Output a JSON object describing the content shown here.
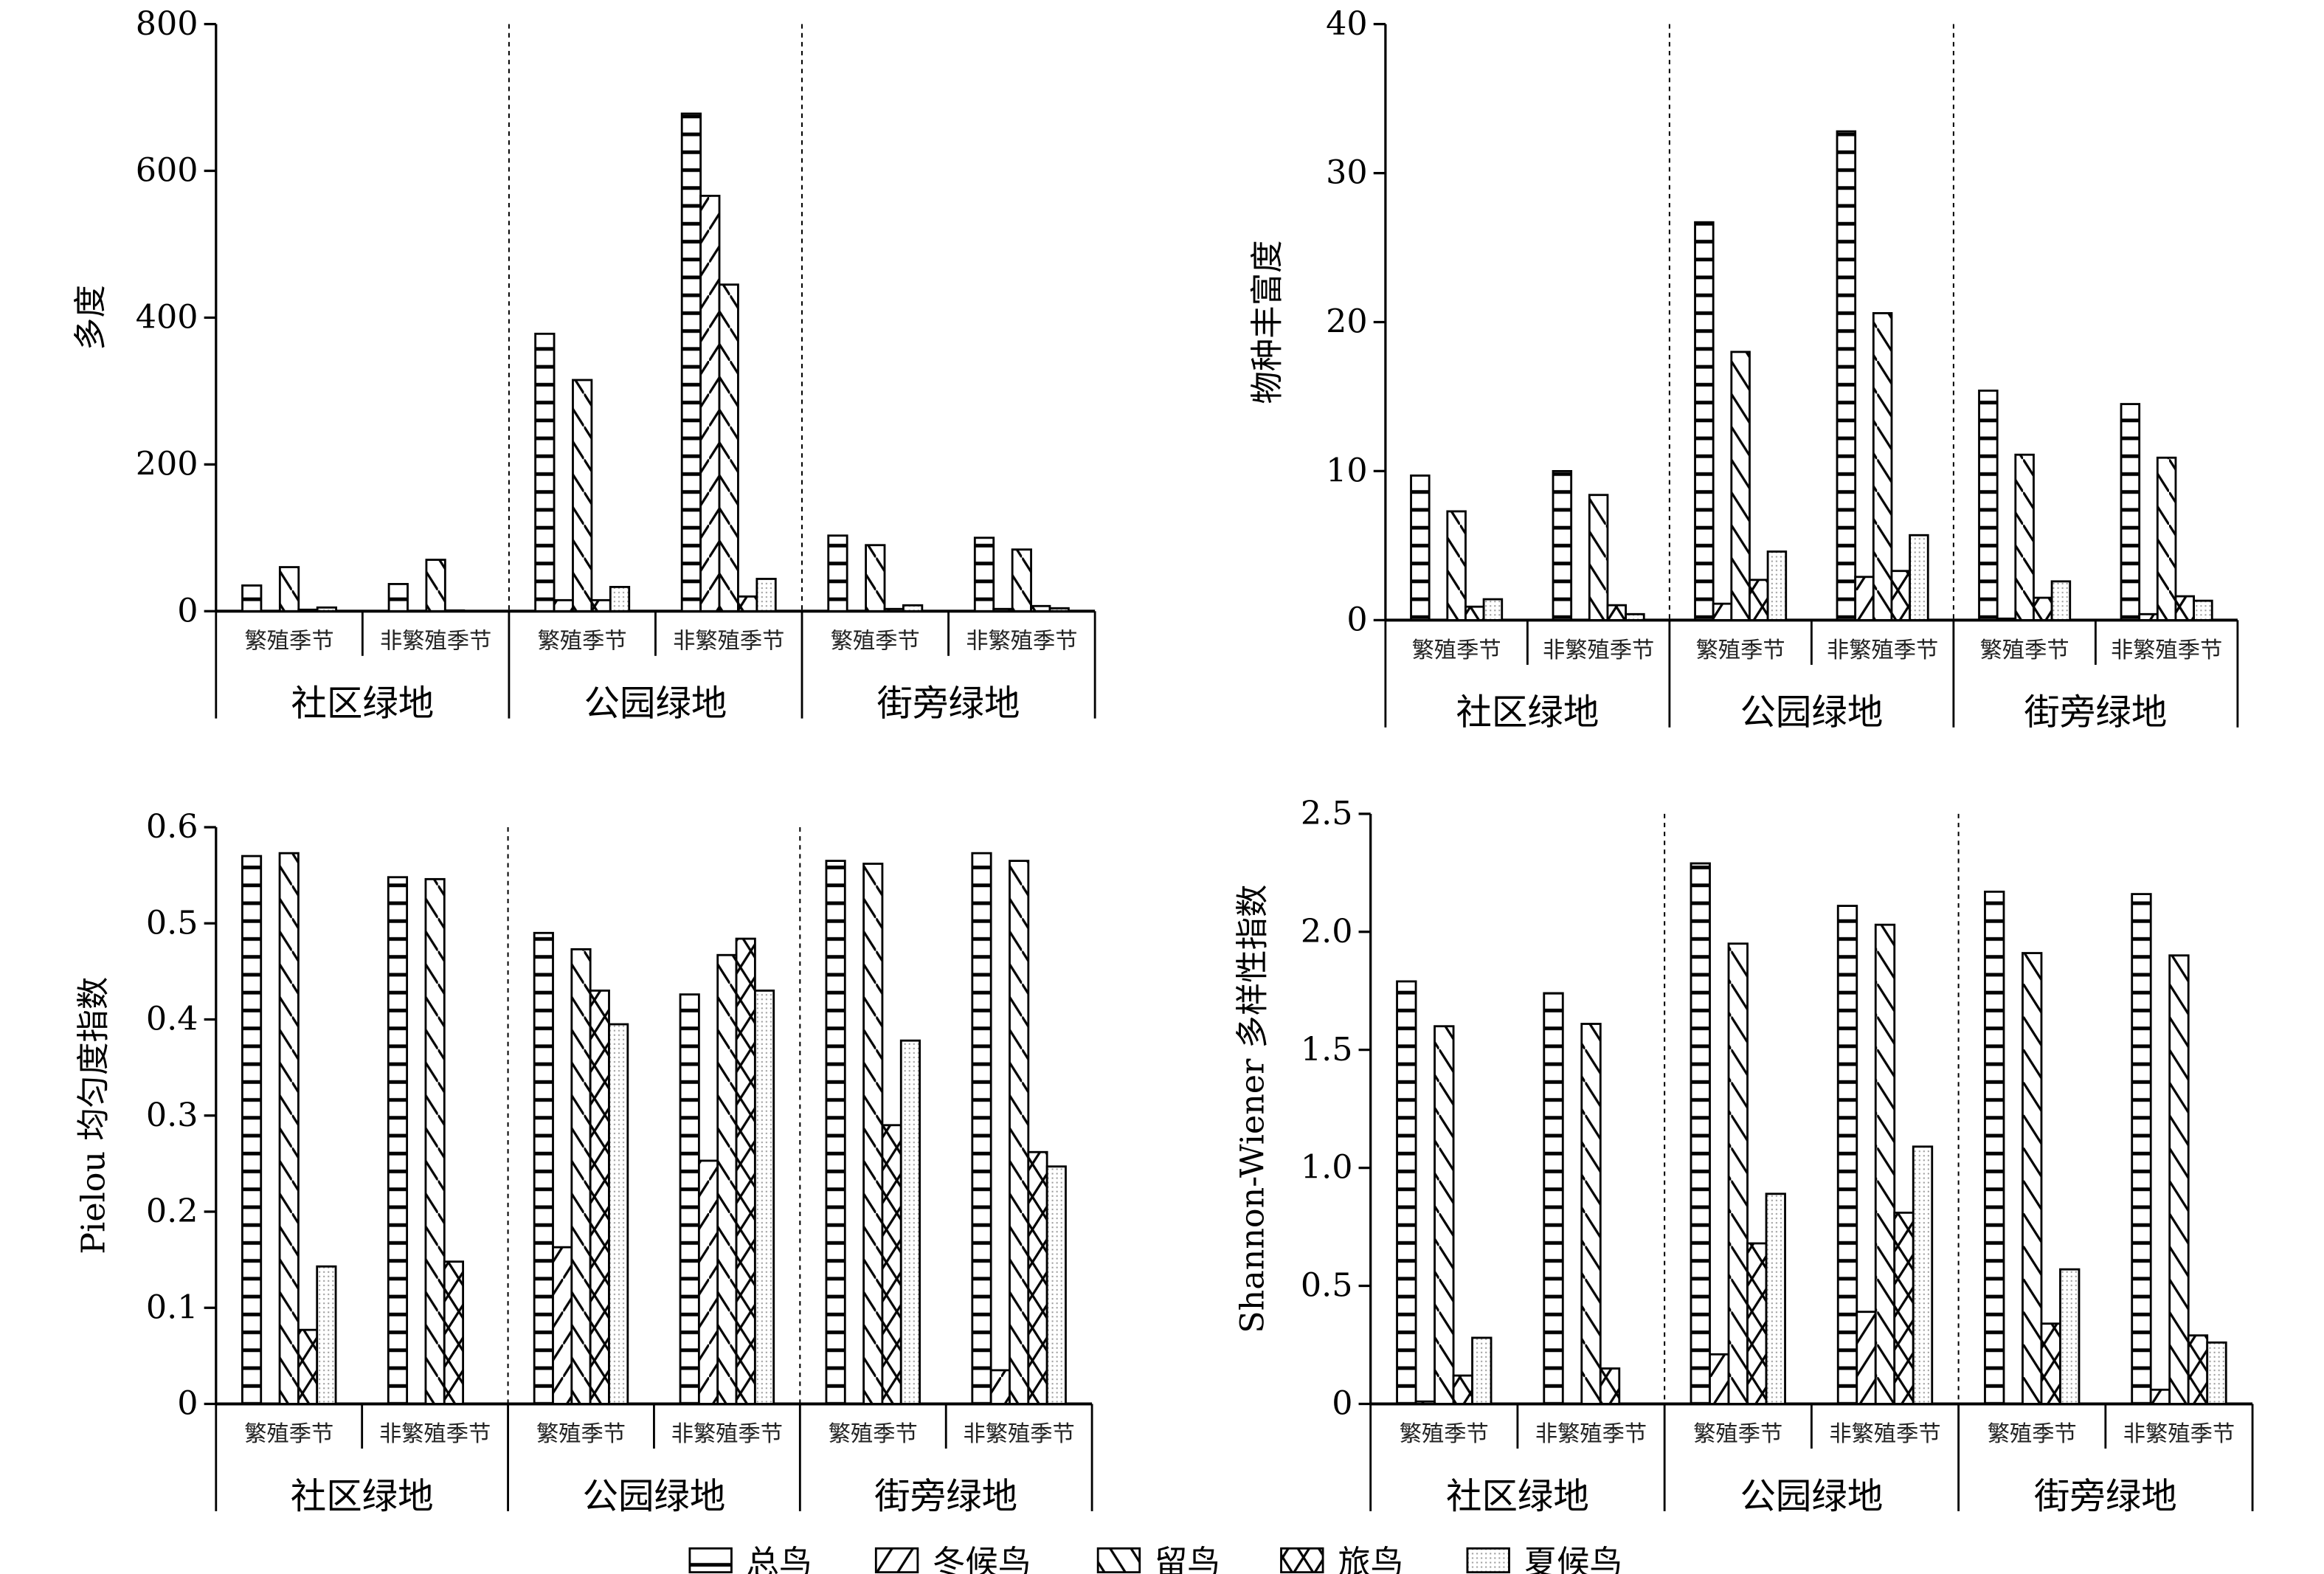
{
  "chart_data": [
    {
      "type": "bar",
      "ylabel": "多度",
      "ylim": [
        0,
        800
      ],
      "yticks": [
        "0",
        "200",
        "400",
        "600",
        "800"
      ],
      "habitats": [
        "社区绿地",
        "公园绿地",
        "街旁绿地"
      ],
      "seasons": [
        "繁殖季节",
        "非繁殖季节"
      ],
      "series": [
        {
          "name": "总鸟",
          "values": [
            35,
            37,
            378,
            678,
            103,
            100
          ]
        },
        {
          "name": "冬候鸟",
          "values": [
            0,
            0,
            15,
            566,
            0,
            3
          ]
        },
        {
          "name": "留鸟",
          "values": [
            60,
            70,
            315,
            445,
            90,
            84
          ]
        },
        {
          "name": "旅鸟",
          "values": [
            2,
            1,
            15,
            20,
            3,
            7
          ]
        },
        {
          "name": "夏候鸟",
          "values": [
            5,
            0,
            33,
            44,
            8,
            4
          ]
        }
      ]
    },
    {
      "type": "bar",
      "ylabel": "物种丰富度",
      "ylim": [
        0,
        40
      ],
      "yticks": [
        "0",
        "10",
        "20",
        "30",
        "40"
      ],
      "habitats": [
        "社区绿地",
        "公园绿地",
        "街旁绿地"
      ],
      "seasons": [
        "繁殖季节",
        "非繁殖季节"
      ],
      "series": [
        {
          "name": "总鸟",
          "values": [
            9.7,
            10.0,
            26.7,
            32.8,
            15.4,
            14.5
          ]
        },
        {
          "name": "冬候鸟",
          "values": [
            0,
            0,
            1.1,
            2.9,
            0.1,
            0.4
          ]
        },
        {
          "name": "留鸟",
          "values": [
            7.3,
            8.4,
            18.0,
            20.6,
            11.1,
            10.9
          ]
        },
        {
          "name": "旅鸟",
          "values": [
            0.9,
            1.0,
            2.7,
            3.3,
            1.5,
            1.6
          ]
        },
        {
          "name": "夏候鸟",
          "values": [
            1.4,
            0.4,
            4.6,
            5.7,
            2.6,
            1.3
          ]
        }
      ]
    },
    {
      "type": "bar",
      "ylabel": "Pielou 均匀度指数",
      "ylim": [
        0,
        0.6
      ],
      "yticks": [
        "0",
        "0.1",
        "0.2",
        "0.3",
        "0.4",
        "0.5",
        "0.6"
      ],
      "habitats": [
        "社区绿地",
        "公园绿地",
        "街旁绿地"
      ],
      "seasons": [
        "繁殖季节",
        "非繁殖季节"
      ],
      "series": [
        {
          "name": "总鸟",
          "values": [
            0.57,
            0.548,
            0.49,
            0.426,
            0.565,
            0.573
          ]
        },
        {
          "name": "冬候鸟",
          "values": [
            0,
            0,
            0.163,
            0.253,
            0,
            0.035
          ]
        },
        {
          "name": "留鸟",
          "values": [
            0.573,
            0.546,
            0.473,
            0.467,
            0.562,
            0.565
          ]
        },
        {
          "name": "旅鸟",
          "values": [
            0.077,
            0.148,
            0.43,
            0.484,
            0.29,
            0.262
          ]
        },
        {
          "name": "夏候鸟",
          "values": [
            0.143,
            0,
            0.395,
            0.43,
            0.378,
            0.247
          ]
        }
      ]
    },
    {
      "type": "bar",
      "ylabel": "Shannon-Wiener 多样性指数",
      "ylim": [
        0,
        2.5
      ],
      "yticks": [
        "0",
        "0.5",
        "1.0",
        "1.5",
        "2.0",
        "2.5"
      ],
      "habitats": [
        "社区绿地",
        "公园绿地",
        "街旁绿地"
      ],
      "seasons": [
        "繁殖季节",
        "非繁殖季节"
      ],
      "series": [
        {
          "name": "总鸟",
          "values": [
            1.79,
            1.74,
            2.29,
            2.11,
            2.17,
            2.16
          ]
        },
        {
          "name": "冬候鸟",
          "values": [
            0.01,
            0,
            0.21,
            0.39,
            0,
            0.06
          ]
        },
        {
          "name": "留鸟",
          "values": [
            1.6,
            1.61,
            1.95,
            2.03,
            1.91,
            1.9
          ]
        },
        {
          "name": "旅鸟",
          "values": [
            0.12,
            0.15,
            0.68,
            0.81,
            0.34,
            0.29
          ]
        },
        {
          "name": "夏候鸟",
          "values": [
            0.28,
            0,
            0.89,
            1.09,
            0.57,
            0.26
          ]
        }
      ]
    }
  ],
  "legend": {
    "placement": "bottom",
    "items": [
      {
        "name": "总鸟",
        "pattern": "horizontal-lines"
      },
      {
        "name": "冬候鸟",
        "pattern": "forward-diagonal"
      },
      {
        "name": "留鸟",
        "pattern": "back-diagonal"
      },
      {
        "name": "旅鸟",
        "pattern": "crosshatch"
      },
      {
        "name": "夏候鸟",
        "pattern": "dots"
      }
    ]
  },
  "colors": {
    "ink": "#000000",
    "background": "#ffffff",
    "dots": "#9a9a9a"
  }
}
